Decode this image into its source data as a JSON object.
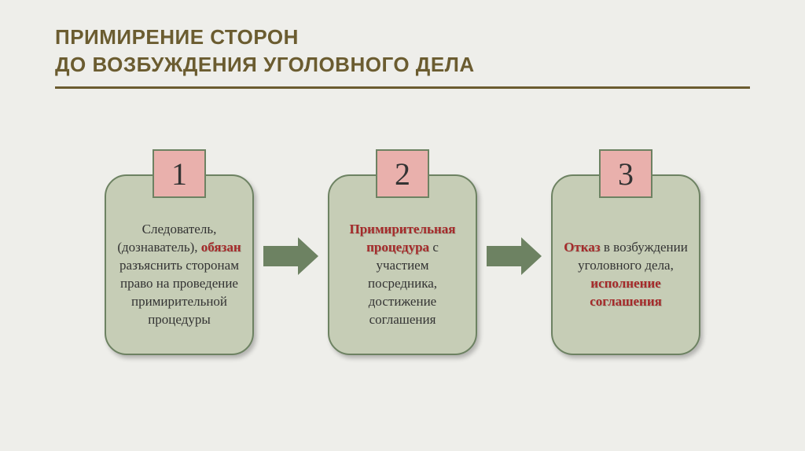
{
  "title": {
    "line1": "ПРИМИРЕНИЕ СТОРОН",
    "line2": "ДО ВОЗБУЖДЕНИЯ УГОЛОВНОГО ДЕЛА",
    "color": "#6b5c30",
    "fontsize": 26,
    "hr_color": "#6b5c30"
  },
  "colors": {
    "background": "#eeeeea",
    "num_fill": "#e9b0ac",
    "num_border": "#6d8262",
    "card_fill": "#c6cdb6",
    "card_border": "#6d8262",
    "arrow": "#6d8262",
    "text": "#333333",
    "emph": "#a52a2a"
  },
  "typography": {
    "num_fontsize": 40,
    "body_fontsize": 17
  },
  "steps": [
    {
      "num": "1",
      "segments": [
        {
          "t": "Следователь, (дознаватель), ",
          "emph": false
        },
        {
          "t": "обязан",
          "emph": true
        },
        {
          "t": " разъяснить сторонам право на проведение примирительной процедуры",
          "emph": false
        }
      ]
    },
    {
      "num": "2",
      "segments": [
        {
          "t": "Примирительная процедура",
          "emph": true
        },
        {
          "t": " с участием посредника, достижение соглашения",
          "emph": false
        }
      ]
    },
    {
      "num": "3",
      "segments": [
        {
          "t": "Отказ",
          "emph": true
        },
        {
          "t": " в возбуждении уголовного дела, ",
          "emph": false
        },
        {
          "t": "исполнение соглашения",
          "emph": true
        }
      ]
    }
  ]
}
